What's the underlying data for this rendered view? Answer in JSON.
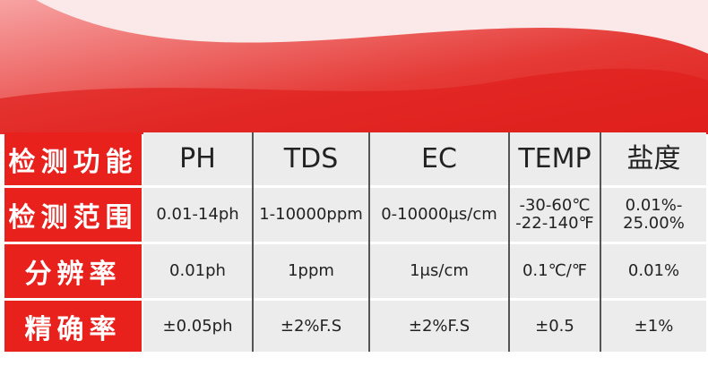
{
  "table": {
    "rows": [
      {
        "label": "检测功能",
        "cells": [
          [
            "PH"
          ],
          [
            "TDS"
          ],
          [
            "EC"
          ],
          [
            "TEMP"
          ],
          [
            "盐度"
          ]
        ]
      },
      {
        "label": "检测范围",
        "cells": [
          [
            "0.01-14ph"
          ],
          [
            "1-10000ppm"
          ],
          [
            "0-10000μs/cm"
          ],
          [
            "-30-60℃",
            "-22-140℉"
          ],
          [
            "0.01%-",
            "25.00%"
          ]
        ]
      },
      {
        "label": "分辨率",
        "cells": [
          [
            "0.01ph"
          ],
          [
            "1ppm"
          ],
          [
            "1μs/cm"
          ],
          [
            "0.1℃/℉"
          ],
          [
            "0.01%"
          ]
        ]
      },
      {
        "label": "精确率",
        "cells": [
          [
            "±0.05ph"
          ],
          [
            "±2%F.S"
          ],
          [
            "±2%F.S"
          ],
          [
            "±0.5"
          ],
          [
            "±1%"
          ]
        ]
      }
    ]
  }
}
